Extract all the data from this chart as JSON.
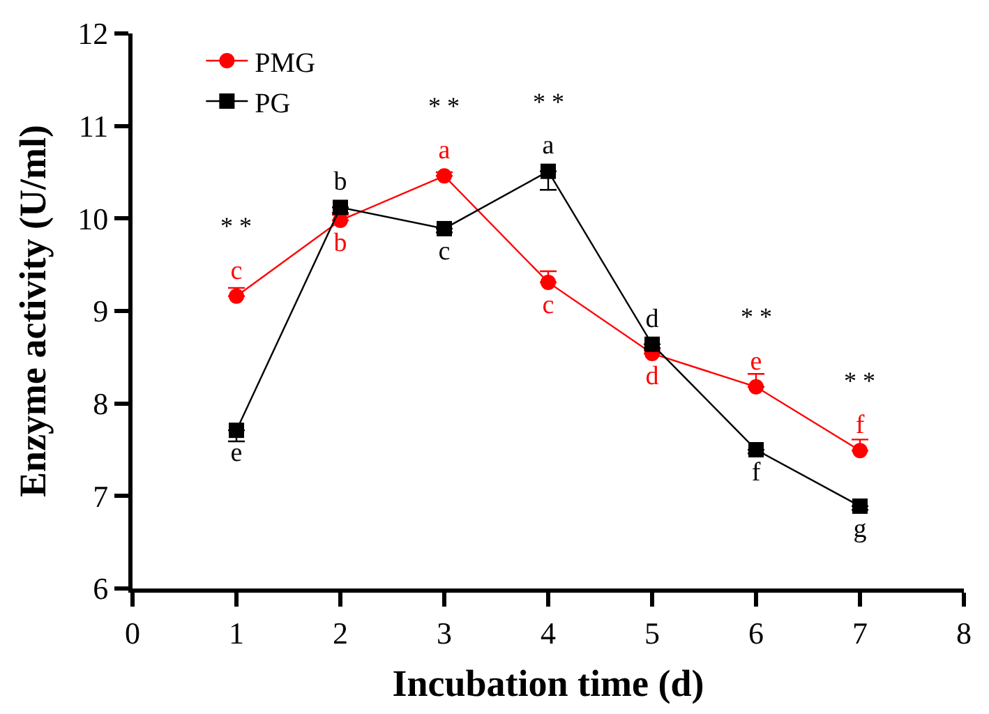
{
  "chart_data": {
    "type": "line",
    "xlabel": "Incubation time (d)",
    "ylabel": "Enzyme activity (U/ml)",
    "x": [
      1,
      2,
      3,
      4,
      5,
      6,
      7
    ],
    "xlim": [
      0,
      8
    ],
    "xticks": [
      0,
      1,
      2,
      3,
      4,
      5,
      6,
      7,
      8
    ],
    "ylim": [
      6,
      12
    ],
    "yticks": [
      6,
      7,
      8,
      9,
      10,
      11,
      12
    ],
    "legend": "top left",
    "series": [
      {
        "name": "PMG",
        "color": "#ff0000",
        "marker": "circle",
        "values": [
          9.16,
          9.98,
          10.46,
          9.31,
          8.54,
          8.18,
          7.49
        ],
        "errors": [
          [
            9.16,
            9.25
          ],
          [
            9.98,
            10.04
          ],
          [
            10.46,
            10.5
          ],
          [
            9.31,
            9.43
          ],
          [
            8.54,
            8.58
          ],
          [
            8.18,
            8.32
          ],
          [
            7.49,
            7.61
          ]
        ],
        "value_labels": [
          "c",
          "b",
          "a",
          "c",
          "d",
          "e",
          "f"
        ]
      },
      {
        "name": "PG",
        "color": "#000000",
        "marker": "square",
        "values": [
          7.71,
          10.12,
          9.89,
          10.51,
          8.64,
          7.5,
          6.89
        ],
        "errors": [
          [
            7.59,
            7.71
          ],
          [
            10.06,
            10.12
          ],
          [
            9.85,
            9.89
          ],
          [
            10.31,
            10.51
          ],
          [
            8.6,
            8.64
          ],
          [
            7.46,
            7.5
          ],
          [
            6.85,
            6.89
          ]
        ],
        "value_labels": [
          "e",
          "b",
          "c",
          "a",
          "d",
          "f",
          "g"
        ]
      }
    ],
    "annotations": [
      {
        "text": "* *",
        "x": 1,
        "y": 9.16
      },
      {
        "text": "* *",
        "x": 3,
        "y": 10.46
      },
      {
        "text": "* *",
        "x": 4,
        "y": 10.51
      },
      {
        "text": "* *",
        "x": 6,
        "y": 8.18
      },
      {
        "text": "* *",
        "x": 7,
        "y": 7.49
      }
    ]
  }
}
